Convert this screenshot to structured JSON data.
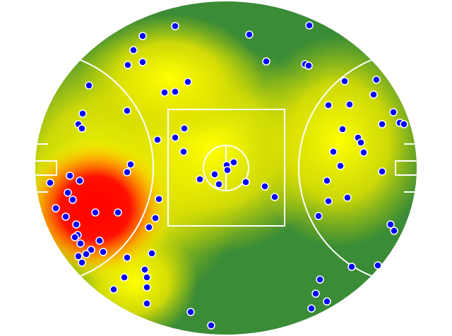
{
  "chart_data": {
    "type": "scatter",
    "color": "#0000ff",
    "x": [
      202,
      248,
      353,
      438,
      189,
      181,
      202,
      377,
      432,
      437,
      126,
      233,
      248,
      266,
      488,
      533,
      529,
      465,
      495,
      117,
      180,
      557,
      111,
      116,
      566,
      572,
      541,
      485,
      261,
      248,
      223,
      507,
      511,
      472,
      515,
      260,
      185,
      180,
      321,
      331,
      322,
      304,
      482,
      541,
      99,
      113,
      71,
      283,
      310,
      348,
      463,
      375,
      389,
      96,
      103,
      225,
      465,
      492,
      79,
      135,
      167,
      93,
      220,
      451,
      108,
      211,
      553,
      558,
      110,
      106,
      141,
      114,
      129,
      146,
      215,
      111,
      122,
      180,
      116,
      498,
      535,
      205,
      208,
      176,
      208,
      161,
      453,
      447,
      463,
      441,
      208,
      270,
      299
    ],
    "y": [
      51,
      37,
      49,
      36,
      71,
      92,
      88,
      87,
      91,
      93,
      121,
      131,
      130,
      116,
      115,
      113,
      134,
      149,
      148,
      161,
      157,
      159,
      176,
      182,
      174,
      176,
      176,
      183,
      182,
      195,
      198,
      195,
      202,
      215,
      216,
      215,
      233,
      244,
      234,
      230,
      241,
      247,
      235,
      243,
      249,
      256,
      259,
      254,
      261,
      258,
      256,
      264,
      279,
      273,
      283,
      282,
      285,
      280,
      295,
      301,
      301,
      307,
      309,
      306,
      318,
      322,
      318,
      327,
      333,
      336,
      341,
      345,
      354,
      357,
      359,
      363,
      360,
      365,
      372,
      378,
      376,
      382,
      393,
      393,
      407,
      410,
      396,
      416,
      427,
      437,
      430,
      442,
      461
    ]
  }
}
